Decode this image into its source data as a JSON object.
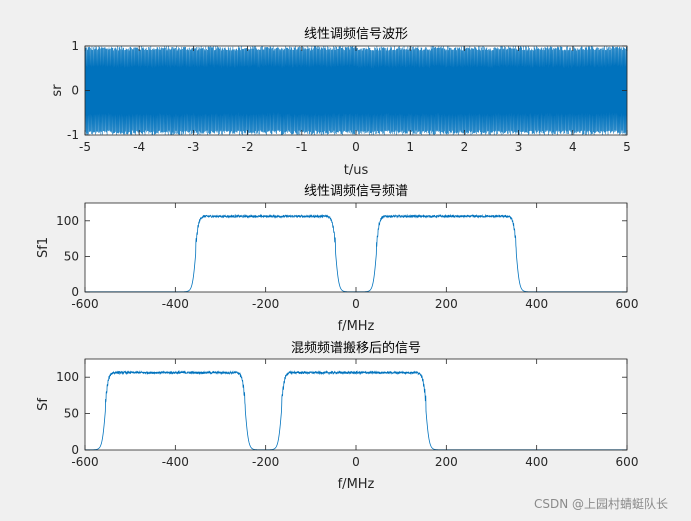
{
  "figure": {
    "background": "#f0f0f0",
    "axes_background": "#ffffff",
    "line_color": "#0072bd",
    "watermark": "CSDN @上园村蜻蜓队长"
  },
  "chart_data": [
    {
      "type": "line",
      "title": "线性调频信号波形",
      "xlabel": "t/us",
      "ylabel": "sr",
      "xlim": [
        -5,
        5
      ],
      "ylim": [
        -1,
        1
      ],
      "xticks": [
        -5,
        -4,
        -3,
        -2,
        -1,
        0,
        1,
        2,
        3,
        4,
        5
      ],
      "yticks": [
        -1,
        0,
        1
      ],
      "series": [
        {
          "pattern": "chirp_wave",
          "x": [
            -5,
            5
          ],
          "amplitude": 1
        }
      ]
    },
    {
      "type": "line",
      "title": "线性调频信号频谱",
      "xlabel": "f/MHz",
      "ylabel": "Sf1",
      "xlim": [
        -600,
        600
      ],
      "ylim": [
        0,
        125
      ],
      "xticks": [
        -600,
        -400,
        -200,
        0,
        200,
        400,
        600
      ],
      "yticks": [
        0,
        50,
        100
      ],
      "series": [
        {
          "pattern": "band_spectrum",
          "bands": [
            [
              -355,
              -45
            ],
            [
              45,
              355
            ]
          ],
          "level": 106,
          "edge_peak": 124
        }
      ]
    },
    {
      "type": "line",
      "title": "混频频谱搬移后的信号",
      "xlabel": "f/MHz",
      "ylabel": "Sf",
      "xlim": [
        -600,
        600
      ],
      "ylim": [
        0,
        125
      ],
      "xticks": [
        -600,
        -400,
        -200,
        0,
        200,
        400,
        600
      ],
      "yticks": [
        0,
        50,
        100
      ],
      "series": [
        {
          "pattern": "band_spectrum",
          "bands": [
            [
              -555,
              -245
            ],
            [
              -165,
              155
            ]
          ],
          "level": 106,
          "edge_peak": 124
        }
      ]
    }
  ]
}
